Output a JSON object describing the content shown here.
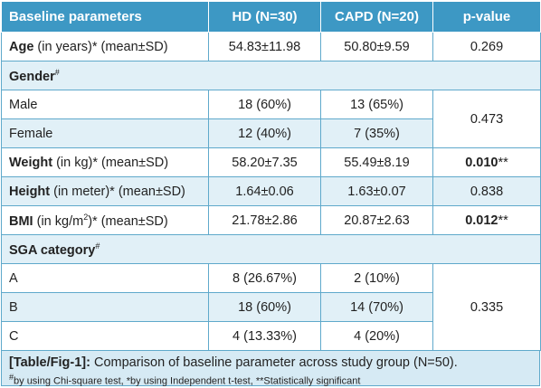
{
  "header": {
    "col1": "Baseline parameters",
    "col2": "HD (N=30)",
    "col3": "CAPD (N=20)",
    "col4": "p-value"
  },
  "rows": {
    "age": {
      "name": "Age",
      "unit": " (in years)* (mean±SD)",
      "hd": "54.83±11.98",
      "capd": "50.80±9.59",
      "p": "0.269"
    },
    "gender": {
      "name": "Gender",
      "sup": "#"
    },
    "male": {
      "name": "Male",
      "hd": "18 (60%)",
      "capd": "13 (65%)"
    },
    "female": {
      "name": "Female",
      "hd": "12 (40%)",
      "capd": "7 (35%)"
    },
    "gender_p": "0.473",
    "weight": {
      "name": "Weight",
      "unit": " (in kg)* (mean±SD)",
      "hd": "58.20±7.35",
      "capd": "55.49±8.19",
      "p": "0.010",
      "p_suffix": "**"
    },
    "height": {
      "name": "Height",
      "unit": " (in meter)* (mean±SD)",
      "hd": "1.64±0.06",
      "capd": "1.63±0.07",
      "p": "0.838"
    },
    "bmi": {
      "name": "BMI",
      "unit_pre": " (in kg/m",
      "unit_sup": "2",
      "unit_post": ")* (mean±SD)",
      "hd": "21.78±2.86",
      "capd": "20.87±2.63",
      "p": "0.012",
      "p_suffix": "**"
    },
    "sga": {
      "name": "SGA category",
      "sup": "#"
    },
    "a": {
      "name": "A",
      "hd": "8 (26.67%)",
      "capd": "2 (10%)"
    },
    "b": {
      "name": "B",
      "hd": "18 (60%)",
      "capd": "14 (70%)"
    },
    "c": {
      "name": "C",
      "hd": "4 (13.33%)",
      "capd": "4 (20%)"
    },
    "sga_p": "0.335"
  },
  "caption": {
    "figure_label": "[Table/Fig-1]:",
    "title": " Comparison of baseline parameter across study group (N=50).",
    "footnote_sup": "#",
    "footnote": "by using Chi-square test, *by using Independent t-test, **Statistically significant"
  },
  "colors": {
    "header_bg": "#3d98c4",
    "shade_bg": "#e1f0f7",
    "caption_bg": "#d6eaf4",
    "border": "#5fa9cb"
  }
}
